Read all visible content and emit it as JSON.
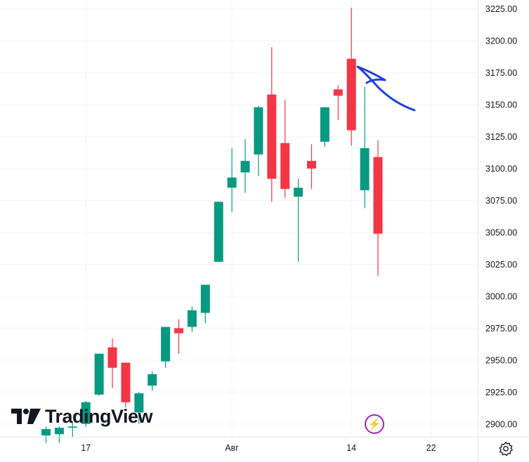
{
  "chart_data": {
    "type": "candlestick",
    "ylim": [
      2890,
      3232
    ],
    "y_ticks": [
      "3225.00",
      "3200.00",
      "3175.00",
      "3150.00",
      "3125.00",
      "3100.00",
      "3075.00",
      "3050.00",
      "3025.00",
      "3000.00",
      "2975.00",
      "2950.00",
      "2925.00",
      "2900.00"
    ],
    "x_ticks": [
      {
        "label": "17",
        "index": 3
      },
      {
        "label": "Авг",
        "index": 14
      },
      {
        "label": "14",
        "index": 23
      },
      {
        "label": "22",
        "index": 29
      }
    ],
    "colors": {
      "up": "#089981",
      "down": "#f23645",
      "annotation": "#1e40d8"
    },
    "candles": [
      {
        "o": 2891,
        "h": 2898,
        "l": 2885,
        "c": 2896
      },
      {
        "o": 2892,
        "h": 2898,
        "l": 2885,
        "c": 2897
      },
      {
        "o": 2897,
        "h": 2901,
        "l": 2890,
        "c": 2898
      },
      {
        "o": 2900,
        "h": 2918,
        "l": 2898,
        "c": 2917
      },
      {
        "o": 2923,
        "h": 2955,
        "l": 2922,
        "c": 2955
      },
      {
        "o": 2960,
        "h": 2967,
        "l": 2928,
        "c": 2944
      },
      {
        "o": 2948,
        "h": 2948,
        "l": 2913,
        "c": 2917
      },
      {
        "o": 2909,
        "h": 2925,
        "l": 2900,
        "c": 2924
      },
      {
        "o": 2930,
        "h": 2941,
        "l": 2926,
        "c": 2939
      },
      {
        "o": 2949,
        "h": 2976,
        "l": 2944,
        "c": 2976
      },
      {
        "o": 2975,
        "h": 2982,
        "l": 2955,
        "c": 2971
      },
      {
        "o": 2976,
        "h": 2992,
        "l": 2972,
        "c": 2989
      },
      {
        "o": 2987,
        "h": 3009,
        "l": 2979,
        "c": 3009
      },
      {
        "o": 3027,
        "h": 3074,
        "l": 3027,
        "c": 3074
      },
      {
        "o": 3085,
        "h": 3116,
        "l": 3066,
        "c": 3093
      },
      {
        "o": 3097,
        "h": 3123,
        "l": 3081,
        "c": 3106
      },
      {
        "o": 3111,
        "h": 3149,
        "l": 3094,
        "c": 3148
      },
      {
        "o": 3158,
        "h": 3195,
        "l": 3074,
        "c": 3092
      },
      {
        "o": 3120,
        "h": 3154,
        "l": 3077,
        "c": 3084
      },
      {
        "o": 3078,
        "h": 3092,
        "l": 3027,
        "c": 3085
      },
      {
        "o": 3106,
        "h": 3119,
        "l": 3084,
        "c": 3100
      },
      {
        "o": 3121,
        "h": 3148,
        "l": 3117,
        "c": 3148
      },
      {
        "o": 3162,
        "h": 3165,
        "l": 3138,
        "c": 3157
      },
      {
        "o": 3186,
        "h": 3226,
        "l": 3118,
        "c": 3130
      },
      {
        "o": 3083,
        "h": 3164,
        "l": 3069,
        "c": 3116
      },
      {
        "o": 3109,
        "h": 3122,
        "l": 3016,
        "c": 3049
      }
    ]
  },
  "branding": {
    "logo_text": "TradingView"
  },
  "icons": {
    "lightning": "lightning-icon",
    "settings": "gear-icon"
  }
}
